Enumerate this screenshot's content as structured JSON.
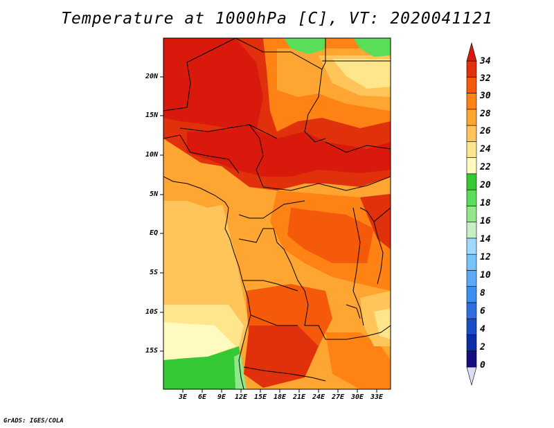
{
  "title": "Temperature at 1000hPa [C], VT: 2020041121",
  "credit": "GrADS: IGES/COLA",
  "map": {
    "lat_labels": [
      "20N",
      "15N",
      "10N",
      "5N",
      "EQ",
      "5S",
      "10S",
      "15S"
    ],
    "lon_labels": [
      "3E",
      "6E",
      "9E",
      "12E",
      "15E",
      "18E",
      "21E",
      "24E",
      "27E",
      "30E",
      "33E"
    ],
    "lon_range": [
      0,
      35
    ],
    "lat_range": [
      -20,
      24.5
    ]
  },
  "colorbar": {
    "levels": [
      "0",
      "2",
      "4",
      "6",
      "8",
      "10",
      "12",
      "14",
      "16",
      "18",
      "20",
      "22",
      "24",
      "26",
      "28",
      "30",
      "32",
      "34"
    ],
    "colors": [
      "#dcdcfa",
      "#150e80",
      "#0a2ea8",
      "#1a4ec8",
      "#2d6ee0",
      "#3c8ef0",
      "#5aaaf5",
      "#78c2fa",
      "#a0d8ff",
      "#c5f0c3",
      "#90e88a",
      "#5ade5a",
      "#35c835",
      "#fffac0",
      "#ffe68c",
      "#ffc45a",
      "#ffa532",
      "#ff8214",
      "#f55a0a",
      "#e0300c",
      "#d8190b"
    ]
  }
}
